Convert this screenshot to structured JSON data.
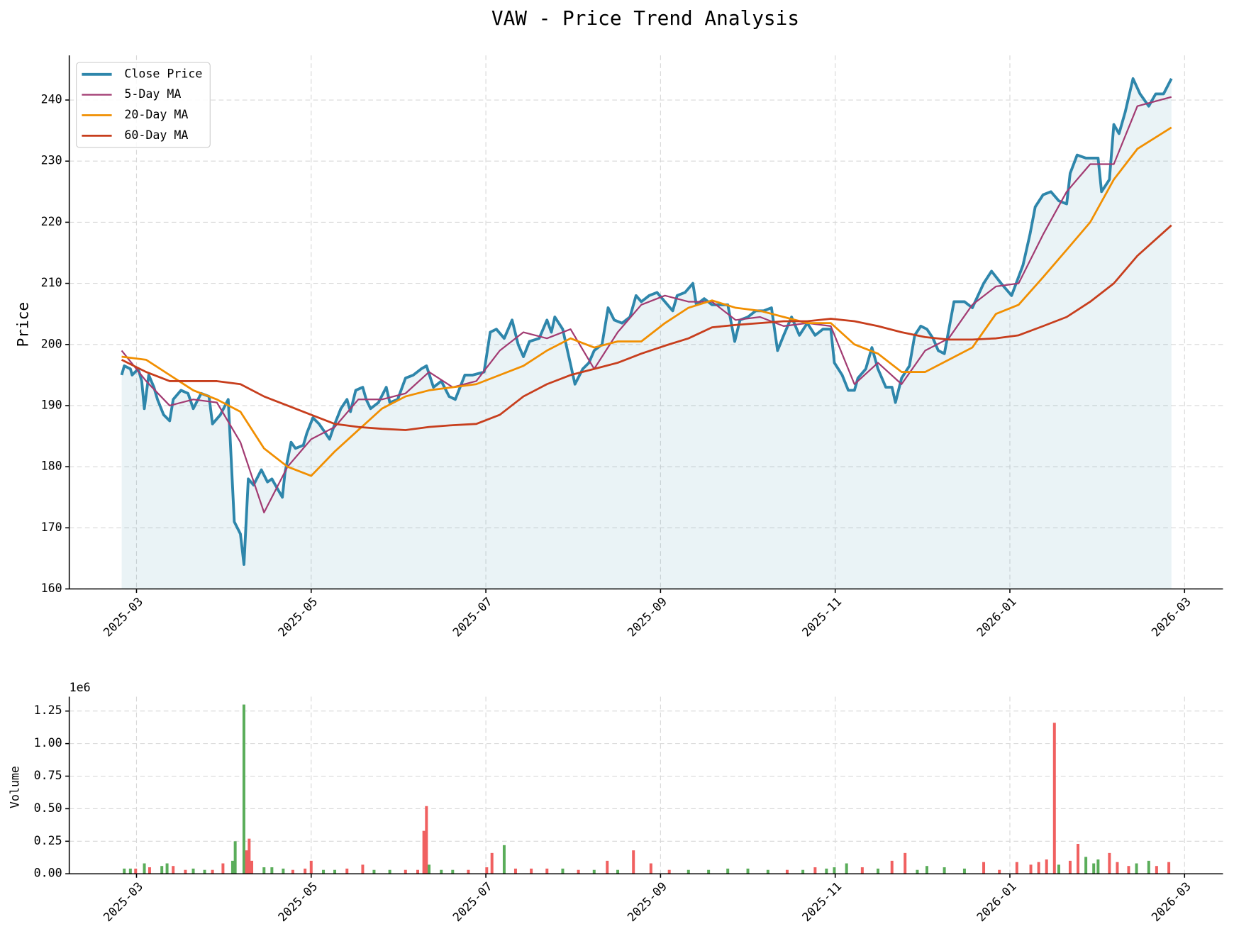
{
  "chart_data": [
    {
      "type": "line",
      "title": "VAW - Price Trend Analysis",
      "y_label": "Price",
      "grid": true,
      "legend": "upper left",
      "xlim": [
        2.23,
        15.44
      ],
      "xticks": [
        {
          "value": 3,
          "label": "2025-03"
        },
        {
          "value": 5,
          "label": "2025-05"
        },
        {
          "value": 7,
          "label": "2025-07"
        },
        {
          "value": 9,
          "label": "2025-09"
        },
        {
          "value": 11,
          "label": "2025-11"
        },
        {
          "value": 13,
          "label": "2026-01"
        },
        {
          "value": 15,
          "label": "2026-03"
        }
      ],
      "ylim": [
        160,
        247.3
      ],
      "yticks": [
        160,
        170,
        180,
        190,
        200,
        210,
        220,
        230,
        240
      ],
      "series": [
        {
          "name": "Close Price",
          "color": "#2e86ab",
          "width": 3.5,
          "x": [
            2.83,
            2.86,
            2.93,
            2.95,
            3.02,
            3.06,
            3.09,
            3.14,
            3.2,
            3.24,
            3.31,
            3.38,
            3.42,
            3.51,
            3.59,
            3.65,
            3.74,
            3.83,
            3.87,
            3.96,
            4.05,
            4.12,
            4.19,
            4.23,
            4.28,
            4.34,
            4.43,
            4.5,
            4.55,
            4.59,
            4.67,
            4.7,
            4.77,
            4.82,
            4.91,
            4.95,
            5.02,
            5.09,
            5.14,
            5.21,
            5.27,
            5.34,
            5.41,
            5.45,
            5.51,
            5.59,
            5.63,
            5.68,
            5.77,
            5.86,
            5.9,
            5.99,
            6.08,
            6.17,
            6.26,
            6.32,
            6.4,
            6.49,
            6.58,
            6.65,
            6.76,
            6.85,
            6.98,
            7.05,
            7.12,
            7.21,
            7.3,
            7.37,
            7.43,
            7.5,
            7.61,
            7.7,
            7.75,
            7.79,
            7.88,
            7.95,
            8.02,
            8.11,
            8.18,
            8.24,
            8.33,
            8.4,
            8.47,
            8.56,
            8.65,
            8.72,
            8.78,
            8.87,
            8.96,
            9.05,
            9.14,
            9.19,
            9.28,
            9.37,
            9.41,
            9.5,
            9.59,
            9.68,
            9.77,
            9.85,
            9.91,
            10.0,
            10.09,
            10.18,
            10.27,
            10.34,
            10.41,
            10.5,
            10.59,
            10.68,
            10.77,
            10.86,
            10.95,
            10.99,
            11.08,
            11.15,
            11.22,
            11.26,
            11.35,
            11.42,
            11.49,
            11.58,
            11.65,
            11.69,
            11.76,
            11.85,
            11.91,
            11.98,
            12.05,
            12.12,
            12.18,
            12.25,
            12.36,
            12.48,
            12.57,
            12.7,
            12.79,
            12.9,
            13.02,
            13.15,
            13.23,
            13.29,
            13.38,
            13.47,
            13.56,
            13.65,
            13.69,
            13.77,
            13.87,
            14.01,
            14.05,
            14.14,
            14.19,
            14.25,
            14.32,
            14.41,
            14.49,
            14.59,
            14.67,
            14.76,
            14.85
          ],
          "values": [
            195,
            196.5,
            196,
            195,
            196,
            194,
            189.5,
            195,
            193,
            191,
            188.5,
            187.5,
            191,
            192.5,
            192,
            189.5,
            192,
            191.5,
            187,
            188.5,
            191,
            171,
            169,
            164,
            178,
            177,
            179.5,
            177.5,
            178,
            177,
            175,
            179,
            184,
            183,
            183.5,
            185.5,
            188,
            187,
            186,
            184.5,
            187,
            189.5,
            191,
            189,
            192.5,
            193,
            191,
            189.5,
            190.5,
            193,
            190.5,
            191,
            194.5,
            195,
            196,
            196.5,
            193,
            194,
            191.5,
            191,
            195,
            195,
            195.5,
            202,
            202.5,
            201,
            204,
            200,
            198,
            200.5,
            201,
            204,
            202,
            204.5,
            202.5,
            198,
            193.5,
            196,
            197,
            199,
            200,
            206,
            204,
            203.5,
            204.5,
            208,
            207,
            208,
            208.5,
            207,
            205.5,
            208,
            208.5,
            210,
            206.5,
            207.5,
            206.5,
            206.5,
            206.5,
            200.5,
            204,
            204.5,
            205.5,
            205.5,
            206,
            199,
            201.5,
            204.5,
            201.5,
            203.5,
            201.5,
            202.5,
            202.5,
            197,
            195,
            192.5,
            192.5,
            194.5,
            196,
            199.5,
            196,
            193,
            193,
            190.5,
            194.5,
            196.5,
            201.5,
            203,
            202.5,
            201,
            199,
            198.5,
            207,
            207,
            206,
            210,
            212,
            210,
            208,
            213,
            218,
            222.5,
            224.5,
            225,
            223.5,
            223,
            228,
            231,
            230.5,
            230.5,
            225,
            227,
            236,
            234.5,
            238,
            243.5,
            241,
            239,
            241,
            241,
            243.5
          ]
        },
        {
          "name": "5-Day MA",
          "color": "#a23b72",
          "width": 2,
          "x": [
            2.83,
            3.11,
            3.38,
            3.65,
            3.92,
            4.19,
            4.46,
            4.73,
            5.0,
            5.27,
            5.54,
            5.81,
            6.08,
            6.35,
            6.62,
            6.89,
            7.16,
            7.43,
            7.7,
            7.97,
            8.24,
            8.51,
            8.78,
            9.05,
            9.32,
            9.59,
            9.86,
            10.14,
            10.41,
            10.68,
            10.95,
            11.22,
            11.49,
            11.76,
            12.03,
            12.3,
            12.57,
            12.84,
            13.1,
            13.38,
            13.65,
            13.92,
            14.19,
            14.46,
            14.85
          ],
          "values": [
            199,
            194,
            190,
            191,
            190.5,
            184,
            172.5,
            180,
            184.5,
            186.5,
            191,
            191,
            192,
            195.5,
            193,
            194,
            199,
            202,
            201,
            202.5,
            196,
            202,
            206.5,
            208,
            207,
            207,
            204,
            204.5,
            203,
            203.5,
            203,
            193.5,
            197,
            193.5,
            199,
            201,
            206.5,
            209.5,
            210,
            218,
            225,
            229.5,
            229.5,
            239,
            240.5
          ]
        },
        {
          "name": "20-Day MA",
          "color": "#f18f01",
          "width": 2.5,
          "x": [
            2.83,
            3.11,
            3.38,
            3.65,
            3.92,
            4.19,
            4.46,
            4.73,
            5.0,
            5.27,
            5.54,
            5.81,
            6.08,
            6.35,
            6.62,
            6.89,
            7.16,
            7.43,
            7.7,
            7.97,
            8.24,
            8.51,
            8.78,
            9.05,
            9.32,
            9.59,
            9.86,
            10.14,
            10.41,
            10.68,
            10.95,
            11.22,
            11.49,
            11.76,
            12.03,
            12.3,
            12.57,
            12.84,
            13.1,
            13.38,
            13.65,
            13.92,
            14.19,
            14.46,
            14.85
          ],
          "values": [
            198,
            197.5,
            195,
            192.5,
            191,
            189,
            183,
            180,
            178.5,
            182.5,
            186,
            189.5,
            191.5,
            192.5,
            193,
            193.5,
            195,
            196.5,
            199,
            201,
            199.5,
            200.5,
            200.5,
            203.5,
            206,
            207.2,
            206,
            205.5,
            204.5,
            203.5,
            203.5,
            200,
            198.5,
            195.5,
            195.5,
            197.5,
            199.5,
            205,
            206.5,
            211,
            215.5,
            220,
            227,
            232,
            235.5
          ]
        },
        {
          "name": "60-Day MA",
          "color": "#c73e1d",
          "width": 2.5,
          "x": [
            2.83,
            3.11,
            3.38,
            3.65,
            3.92,
            4.19,
            4.46,
            4.73,
            5.0,
            5.27,
            5.54,
            5.81,
            6.08,
            6.35,
            6.62,
            6.89,
            7.16,
            7.43,
            7.7,
            7.97,
            8.24,
            8.51,
            8.78,
            9.05,
            9.32,
            9.59,
            9.86,
            10.14,
            10.41,
            10.68,
            10.95,
            11.22,
            11.49,
            11.76,
            12.03,
            12.3,
            12.57,
            12.84,
            13.1,
            13.38,
            13.65,
            13.92,
            14.19,
            14.46,
            14.85
          ],
          "values": [
            197.5,
            195.5,
            194,
            194,
            194,
            193.5,
            191.5,
            190,
            188.5,
            187,
            186.5,
            186.2,
            186,
            186.5,
            186.8,
            187,
            188.5,
            191.5,
            193.5,
            195,
            196,
            197,
            198.5,
            199.8,
            201,
            202.8,
            203.2,
            203.5,
            203.8,
            203.8,
            204.2,
            203.8,
            203,
            202,
            201.2,
            200.8,
            200.8,
            201,
            201.5,
            203,
            204.5,
            207,
            210,
            214.5,
            219.5
          ]
        }
      ]
    },
    {
      "type": "bar",
      "y_label": "Volume",
      "offset_label": "1e6",
      "grid": true,
      "xlim": [
        2.23,
        15.44
      ],
      "xticks": [
        {
          "value": 3,
          "label": "2025-03"
        },
        {
          "value": 5,
          "label": "2025-05"
        },
        {
          "value": 7,
          "label": "2025-07"
        },
        {
          "value": 9,
          "label": "2025-09"
        },
        {
          "value": 11,
          "label": "2025-11"
        },
        {
          "value": 13,
          "label": "2026-01"
        },
        {
          "value": 15,
          "label": "2026-03"
        }
      ],
      "ylim": [
        0,
        1.36
      ],
      "yticks": [
        {
          "value": 0,
          "label": "0.00"
        },
        {
          "value": 0.25,
          "label": "0.25"
        },
        {
          "value": 0.5,
          "label": "0.50"
        },
        {
          "value": 0.75,
          "label": "0.75"
        },
        {
          "value": 1,
          "label": "1.00"
        },
        {
          "value": 1.25,
          "label": "1.25"
        }
      ],
      "x": [
        2.86,
        2.93,
        2.99,
        3.09,
        3.15,
        3.29,
        3.35,
        3.42,
        3.56,
        3.65,
        3.78,
        3.87,
        3.99,
        4.1,
        4.13,
        4.23,
        4.26,
        4.29,
        4.32,
        4.46,
        4.55,
        4.68,
        4.79,
        4.93,
        5.0,
        5.14,
        5.27,
        5.41,
        5.59,
        5.72,
        5.9,
        6.08,
        6.22,
        6.29,
        6.32,
        6.35,
        6.49,
        6.62,
        6.8,
        7.01,
        7.07,
        7.21,
        7.34,
        7.52,
        7.7,
        7.88,
        8.06,
        8.24,
        8.39,
        8.51,
        8.69,
        8.89,
        9.1,
        9.32,
        9.55,
        9.77,
        10.0,
        10.23,
        10.45,
        10.63,
        10.77,
        10.9,
        10.99,
        11.13,
        11.31,
        11.49,
        11.65,
        11.8,
        11.94,
        12.05,
        12.25,
        12.48,
        12.7,
        12.88,
        13.08,
        13.24,
        13.33,
        13.42,
        13.51,
        13.56,
        13.69,
        13.78,
        13.87,
        13.96,
        14.01,
        14.14,
        14.23,
        14.36,
        14.45,
        14.59,
        14.68,
        14.82
      ],
      "values": [
        0.04,
        0.04,
        0.04,
        0.08,
        0.05,
        0.06,
        0.08,
        0.06,
        0.03,
        0.04,
        0.03,
        0.03,
        0.08,
        0.1,
        0.25,
        1.3,
        0.18,
        0.27,
        0.1,
        0.05,
        0.05,
        0.04,
        0.03,
        0.04,
        0.1,
        0.03,
        0.03,
        0.04,
        0.07,
        0.03,
        0.03,
        0.03,
        0.03,
        0.33,
        0.52,
        0.07,
        0.03,
        0.03,
        0.03,
        0.05,
        0.16,
        0.22,
        0.04,
        0.04,
        0.04,
        0.04,
        0.03,
        0.03,
        0.1,
        0.03,
        0.18,
        0.08,
        0.03,
        0.03,
        0.03,
        0.04,
        0.04,
        0.03,
        0.03,
        0.03,
        0.05,
        0.04,
        0.05,
        0.08,
        0.05,
        0.04,
        0.1,
        0.16,
        0.03,
        0.06,
        0.05,
        0.04,
        0.09,
        0.03,
        0.09,
        0.07,
        0.09,
        0.11,
        1.16,
        0.07,
        0.1,
        0.23,
        0.13,
        0.08,
        0.11,
        0.16,
        0.09,
        0.06,
        0.08,
        0.1,
        0.06,
        0.09
      ],
      "colors": [
        "#5aad5a",
        "#5aad5a",
        "#f06060",
        "#5aad5a",
        "#f06060",
        "#5aad5a",
        "#5aad5a",
        "#f06060",
        "#f06060",
        "#5aad5a",
        "#5aad5a",
        "#f06060",
        "#f06060",
        "#5aad5a",
        "#5aad5a",
        "#5aad5a",
        "#f06060",
        "#f06060",
        "#f06060",
        "#5aad5a",
        "#5aad5a",
        "#5aad5a",
        "#f06060",
        "#f06060",
        "#f06060",
        "#5aad5a",
        "#5aad5a",
        "#f06060",
        "#f06060",
        "#5aad5a",
        "#5aad5a",
        "#f06060",
        "#f06060",
        "#f06060",
        "#f06060",
        "#5aad5a",
        "#5aad5a",
        "#5aad5a",
        "#f06060",
        "#f06060",
        "#f06060",
        "#5aad5a",
        "#f06060",
        "#f06060",
        "#f06060",
        "#5aad5a",
        "#f06060",
        "#5aad5a",
        "#f06060",
        "#5aad5a",
        "#f06060",
        "#f06060",
        "#f06060",
        "#5aad5a",
        "#5aad5a",
        "#5aad5a",
        "#5aad5a",
        "#5aad5a",
        "#f06060",
        "#5aad5a",
        "#f06060",
        "#5aad5a",
        "#5aad5a",
        "#5aad5a",
        "#f06060",
        "#5aad5a",
        "#f06060",
        "#f06060",
        "#5aad5a",
        "#5aad5a",
        "#5aad5a",
        "#5aad5a",
        "#f06060",
        "#f06060",
        "#f06060",
        "#f06060",
        "#f06060",
        "#f06060",
        "#f06060",
        "#5aad5a",
        "#f06060",
        "#f06060",
        "#5aad5a",
        "#5aad5a",
        "#5aad5a",
        "#f06060",
        "#f06060",
        "#f06060",
        "#5aad5a",
        "#5aad5a",
        "#f06060",
        "#f06060"
      ]
    }
  ]
}
